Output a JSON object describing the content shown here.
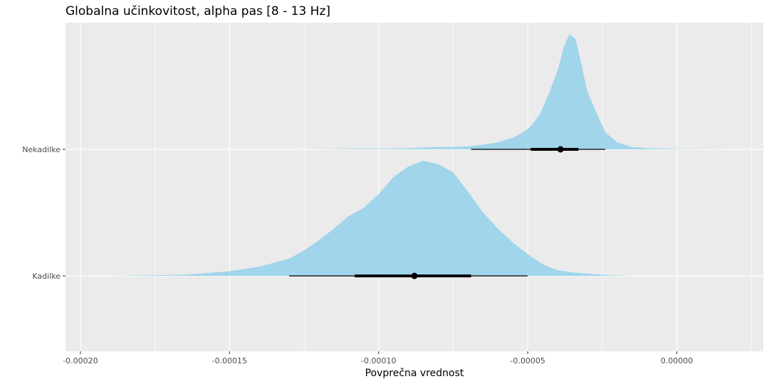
{
  "chart_data": {
    "type": "area",
    "subtype": "halfeye-density",
    "title": "Globalna učinkovitost, alpha pas [8 - 13 Hz]",
    "xlabel": "Povprečna vrednost",
    "ylabel": "",
    "xlim": [
      -0.000205,
      2.9e-05
    ],
    "x_ticks": [
      -0.0002,
      -0.00015,
      -0.0001,
      -5e-05,
      0.0
    ],
    "x_tick_labels": [
      "-0.00020",
      "-0.00015",
      "-0.00010",
      "-0.00005",
      "0.00000"
    ],
    "categories": [
      "Nekadilke",
      "Kadilke"
    ],
    "grid": true,
    "legend": "none",
    "colors": {
      "density": "#87CEEB",
      "panel": "#EBEBEB",
      "grid": "#FFFFFF",
      "interval": "#000000"
    },
    "series": [
      {
        "category": "Nekadilke",
        "median": -3.9e-05,
        "interval_66": [
          -4.9e-05,
          -3.3e-05
        ],
        "interval_95": [
          -6.9e-05,
          -2.4e-05
        ],
        "density": [
          [
            -0.000125,
            0.0
          ],
          [
            -0.00011,
            0.005
          ],
          [
            -0.0001,
            0.005
          ],
          [
            -9e-05,
            0.01
          ],
          [
            -8e-05,
            0.02
          ],
          [
            -7.5e-05,
            0.02
          ],
          [
            -7e-05,
            0.025
          ],
          [
            -6.5e-05,
            0.04
          ],
          [
            -6e-05,
            0.06
          ],
          [
            -5.5e-05,
            0.1
          ],
          [
            -5.2e-05,
            0.14
          ],
          [
            -4.9e-05,
            0.2
          ],
          [
            -4.6e-05,
            0.3
          ],
          [
            -4.3e-05,
            0.48
          ],
          [
            -4e-05,
            0.68
          ],
          [
            -3.8e-05,
            0.88
          ],
          [
            -3.6e-05,
            1.0
          ],
          [
            -3.4e-05,
            0.96
          ],
          [
            -3.2e-05,
            0.74
          ],
          [
            -3e-05,
            0.5
          ],
          [
            -2.7e-05,
            0.32
          ],
          [
            -2.4e-05,
            0.15
          ],
          [
            -2e-05,
            0.06
          ],
          [
            -1.5e-05,
            0.02
          ],
          [
            -1e-05,
            0.01
          ],
          [
            0.0,
            0.003
          ],
          [
            2e-05,
            0.0
          ]
        ]
      },
      {
        "category": "Kadilke",
        "median": -8.8e-05,
        "interval_66": [
          -0.000108,
          -6.9e-05
        ],
        "interval_95": [
          -0.00013,
          -5e-05
        ],
        "density": [
          [
            -0.00019,
            0.0
          ],
          [
            -0.000165,
            0.01
          ],
          [
            -0.00015,
            0.04
          ],
          [
            -0.00014,
            0.08
          ],
          [
            -0.00013,
            0.15
          ],
          [
            -0.000125,
            0.22
          ],
          [
            -0.00012,
            0.31
          ],
          [
            -0.000115,
            0.41
          ],
          [
            -0.00011,
            0.52
          ],
          [
            -0.000105,
            0.59
          ],
          [
            -0.0001,
            0.71
          ],
          [
            -9.5e-05,
            0.86
          ],
          [
            -9e-05,
            0.95
          ],
          [
            -8.5e-05,
            1.0
          ],
          [
            -8e-05,
            0.97
          ],
          [
            -7.5e-05,
            0.9
          ],
          [
            -7e-05,
            0.73
          ],
          [
            -6.5e-05,
            0.55
          ],
          [
            -6e-05,
            0.41
          ],
          [
            -5.5e-05,
            0.29
          ],
          [
            -5e-05,
            0.19
          ],
          [
            -4.5e-05,
            0.1
          ],
          [
            -4e-05,
            0.05
          ],
          [
            -3.5e-05,
            0.03
          ],
          [
            -3e-05,
            0.02
          ],
          [
            -2.2e-05,
            0.005
          ],
          [
            -1.5e-05,
            0.0
          ]
        ]
      }
    ]
  }
}
